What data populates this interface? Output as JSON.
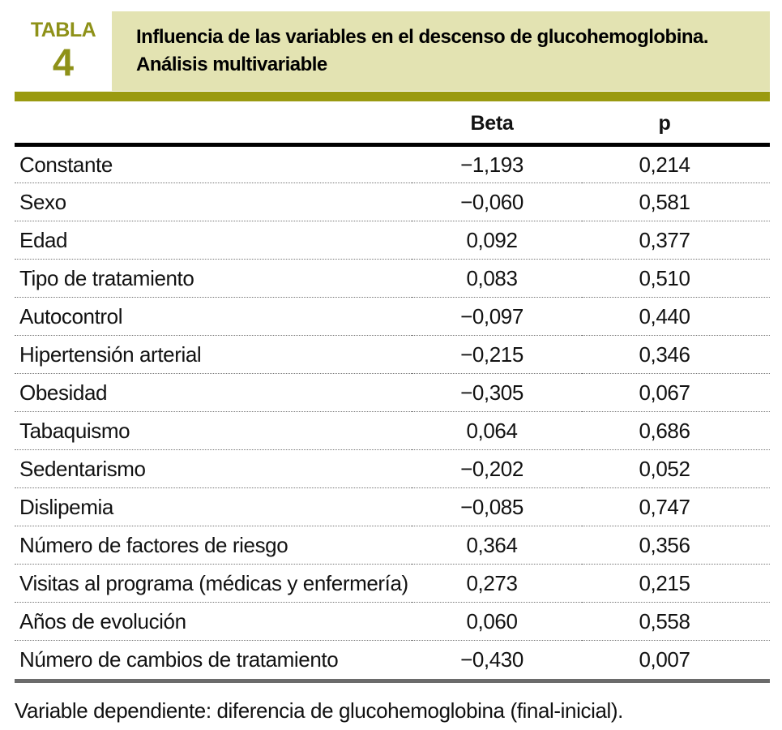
{
  "figure": {
    "label_word": "TABLA",
    "label_number": "4",
    "title_line1": "Influencia de las variables en el descenso de glucohemoglobina.",
    "title_line2": "Análisis multivariable"
  },
  "table": {
    "columns": {
      "variable": "",
      "beta": "Beta",
      "p": "p"
    },
    "rows": [
      {
        "label": "Constante",
        "beta": "−1,193",
        "p": "0,214"
      },
      {
        "label": "Sexo",
        "beta": "−0,060",
        "p": "0,581"
      },
      {
        "label": "Edad",
        "beta": "0,092",
        "p": "0,377"
      },
      {
        "label": "Tipo de tratamiento",
        "beta": "0,083",
        "p": "0,510"
      },
      {
        "label": "Autocontrol",
        "beta": "−0,097",
        "p": "0,440"
      },
      {
        "label": "Hipertensión arterial",
        "beta": "−0,215",
        "p": "0,346"
      },
      {
        "label": "Obesidad",
        "beta": "−0,305",
        "p": "0,067"
      },
      {
        "label": "Tabaquismo",
        "beta": "0,064",
        "p": "0,686"
      },
      {
        "label": "Sedentarismo",
        "beta": "−0,202",
        "p": "0,052"
      },
      {
        "label": "Dislipemia",
        "beta": "−0,085",
        "p": "0,747"
      },
      {
        "label": "Número de factores de riesgo",
        "beta": "0,364",
        "p": "0,356"
      },
      {
        "label": "Visitas al programa (médicas y enfermería)",
        "beta": "0,273",
        "p": "0,215"
      },
      {
        "label": "Años de evolución",
        "beta": "0,060",
        "p": "0,558"
      },
      {
        "label": "Número de cambios de tratamiento",
        "beta": "−0,430",
        "p": "0,007"
      }
    ]
  },
  "footnote": "Variable dependiente: diferencia de glucohemoglobina (final-inicial).",
  "chart_data": {
    "type": "table",
    "title": "Influencia de las variables en el descenso de glucohemoglobina. Análisis multivariable",
    "columns": [
      "Variable",
      "Beta",
      "p"
    ],
    "rows": [
      [
        "Constante",
        -1.193,
        0.214
      ],
      [
        "Sexo",
        -0.06,
        0.581
      ],
      [
        "Edad",
        0.092,
        0.377
      ],
      [
        "Tipo de tratamiento",
        0.083,
        0.51
      ],
      [
        "Autocontrol",
        -0.097,
        0.44
      ],
      [
        "Hipertensión arterial",
        -0.215,
        0.346
      ],
      [
        "Obesidad",
        -0.305,
        0.067
      ],
      [
        "Tabaquismo",
        0.064,
        0.686
      ],
      [
        "Sedentarismo",
        -0.202,
        0.052
      ],
      [
        "Dislipemia",
        -0.085,
        0.747
      ],
      [
        "Número de factores de riesgo",
        0.364,
        0.356
      ],
      [
        "Visitas al programa (médicas y enfermería)",
        0.273,
        0.215
      ],
      [
        "Años de evolución",
        0.06,
        0.558
      ],
      [
        "Número de cambios de tratamiento",
        -0.43,
        0.007
      ]
    ]
  },
  "colors": {
    "accent_olive": "#8e9118",
    "header_bg": "#e3e3b2",
    "bar_olive": "#9a9a10",
    "gray_bar": "#6b6b6b"
  }
}
